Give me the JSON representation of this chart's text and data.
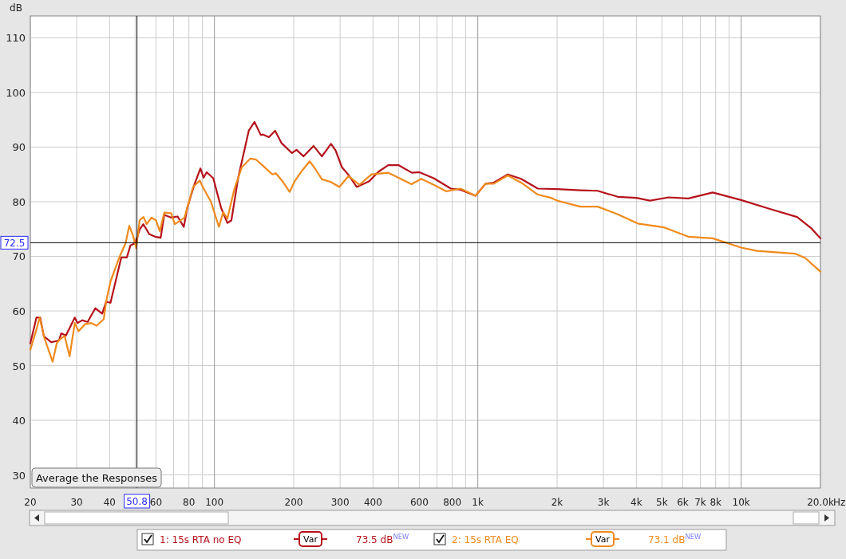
{
  "chart_data": {
    "type": "line",
    "ylabel": "dB",
    "log": "x",
    "grid": true,
    "legend": "bottom",
    "marker": "none",
    "line_style": "solid",
    "xlim": [
      20,
      20000
    ],
    "ylim": [
      27.6,
      114
    ],
    "xticks": [
      20,
      30,
      40,
      {
        "value": 50,
        "label": null
      },
      60,
      {
        "value": 70,
        "label": null
      },
      80,
      {
        "value": 90,
        "label": null
      },
      100,
      200,
      300,
      400,
      {
        "value": 500,
        "label": null
      },
      600,
      {
        "value": 700,
        "label": null
      },
      800,
      {
        "value": 900,
        "label": null
      },
      {
        "value": 1000,
        "label": "1k"
      },
      {
        "value": 2000,
        "label": "2k"
      },
      {
        "value": 3000,
        "label": "3k"
      },
      {
        "value": 4000,
        "label": "4k"
      },
      {
        "value": 5000,
        "label": "5k"
      },
      {
        "value": 6000,
        "label": "6k"
      },
      {
        "value": 7000,
        "label": "7k"
      },
      {
        "value": 8000,
        "label": "8k"
      },
      {
        "value": 9000,
        "label": null
      },
      {
        "value": 10000,
        "label": "10k"
      },
      {
        "value": 20000,
        "label": "20.0k"
      }
    ],
    "xlabel": "Hz",
    "yticks": [
      30,
      40,
      50,
      60,
      70,
      80,
      90,
      100,
      110
    ],
    "ref_lines": [
      {
        "axis": "x",
        "value": 50.8,
        "label": "50.8",
        "color": "#000000"
      },
      {
        "axis": "y",
        "value": 72.5,
        "label": "72.5",
        "color": "#000000"
      }
    ],
    "annotations": [
      "Average the Responses",
      "Var",
      "73.5 dB$^{NEW}$",
      "Var",
      "73.1 dB$^{NEW}$"
    ],
    "series": [
      {
        "name": "1: 15s RTA no EQ",
        "color": "#b5121b",
        "x": [
          20,
          21.1,
          21.8,
          22.5,
          24,
          25.7,
          26.2,
          27.3,
          29.5,
          30.2,
          31.5,
          33,
          35.3,
          37.5,
          38.8,
          40.3,
          42,
          44.3,
          46.5,
          48,
          50,
          52,
          53.7,
          56.5,
          59.5,
          62.5,
          64.5,
          68.5,
          72.5,
          76.5,
          79,
          84,
          88.5,
          91,
          93.5,
          99,
          106,
          112,
          116,
          123,
          135,
          142,
          150,
          153,
          161,
          170,
          180,
          197,
          205,
          218,
          238,
          256,
          277,
          289,
          305,
          323,
          347,
          386,
          420,
          457,
          500,
          562,
          600,
          680,
          790,
          860,
          980,
          1070,
          1150,
          1300,
          1460,
          1690,
          2000,
          2450,
          2850,
          3400,
          4000,
          4500,
          5300,
          6300,
          7800,
          10000,
          13000,
          16300,
          18400,
          20000
        ],
        "values": [
          54.1,
          58.8,
          58.8,
          55.4,
          54.3,
          54.6,
          55.9,
          55.5,
          58.8,
          57.8,
          58.3,
          58,
          60.5,
          59.5,
          61.7,
          61.5,
          65.1,
          69.8,
          69.8,
          72,
          72.4,
          74.9,
          75.9,
          74.1,
          73.6,
          73.4,
          77.6,
          77.1,
          77.3,
          75.4,
          79,
          83.2,
          86.1,
          84.4,
          85.4,
          84.3,
          78.9,
          76.1,
          76.6,
          84.3,
          93,
          94.6,
          92.2,
          92.3,
          91.8,
          93,
          90.7,
          88.9,
          89.5,
          88.3,
          90.2,
          88.3,
          90.6,
          89.3,
          86.3,
          84.9,
          82.7,
          83.7,
          85.5,
          86.7,
          86.7,
          85.3,
          85.4,
          84.3,
          82.4,
          82.2,
          81.1,
          83.3,
          83.5,
          85,
          84.2,
          82.4,
          82.3,
          82.1,
          82,
          80.9,
          80.7,
          80.2,
          80.8,
          80.6,
          81.7,
          80.3,
          78.6,
          77.2,
          75.2,
          73.3
        ]
      },
      {
        "name": "2: 15s RTA EQ",
        "color": "#f08a1c",
        "x": [
          20,
          21,
          21.7,
          22.6,
          24.3,
          25.2,
          26,
          27,
          28.2,
          29.5,
          30.5,
          32.3,
          34,
          35.7,
          38,
          38.8,
          40.3,
          43.7,
          46,
          47.5,
          49,
          50.5,
          52,
          53.8,
          55.3,
          57.7,
          60,
          62,
          64.5,
          68.5,
          70.7,
          77,
          83,
          88,
          91,
          97,
          104,
          108,
          112,
          119,
          127,
          137,
          144,
          152,
          166,
          171,
          181,
          193,
          202,
          216,
          230,
          243,
          256,
          277,
          298,
          323,
          355,
          395,
          457,
          480,
          560,
          610,
          680,
          760,
          860,
          980,
          1070,
          1150,
          1300,
          1460,
          1690,
          1900,
          2000,
          2450,
          2850,
          3400,
          4050,
          5100,
          6300,
          7800,
          10000,
          11500,
          16000,
          17500,
          20000
        ],
        "values": [
          52.9,
          56.3,
          58.8,
          55.1,
          50.7,
          54.1,
          54.9,
          55.4,
          51.7,
          57.8,
          56.3,
          57.6,
          57.8,
          57.3,
          58.5,
          61.7,
          65.4,
          70,
          72.4,
          75.6,
          73.9,
          71.5,
          76.6,
          77.2,
          75.9,
          77.1,
          76.6,
          74.6,
          78,
          77.9,
          75.9,
          77.1,
          82.7,
          83.9,
          82.4,
          80,
          75.4,
          78.1,
          76.9,
          82.3,
          86.3,
          87.9,
          87.7,
          86.7,
          85,
          85.2,
          83.8,
          81.8,
          83.8,
          85.8,
          87.4,
          85.8,
          84.1,
          83.6,
          82.7,
          84.7,
          83.1,
          85,
          85.3,
          84.8,
          83.2,
          84.2,
          83.1,
          81.9,
          82.4,
          81.1,
          83.3,
          83.3,
          84.8,
          83.5,
          81.3,
          80.7,
          80.2,
          79.1,
          79.1,
          77.7,
          76,
          75.3,
          73.6,
          73.3,
          71.6,
          71,
          70.5,
          69.7,
          67.2
        ]
      }
    ]
  }
}
